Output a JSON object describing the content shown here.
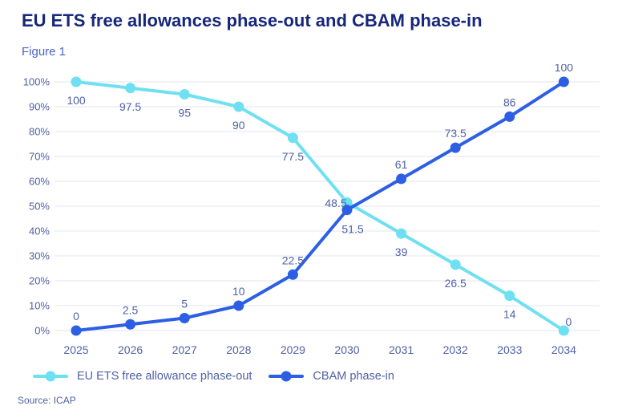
{
  "title": "EU ETS free allowances phase-out and CBAM phase-in",
  "figure_label": "Figure 1",
  "source_note": "Source: ICAP",
  "colors": {
    "title": "#16277c",
    "figure_label": "#4a63c8",
    "axis_text": "#4f61a5",
    "gridline": "#e3e5ef",
    "ets_series": "#6fe0f2",
    "cbam_series": "#2c5fe3",
    "background": "#ffffff"
  },
  "legend": {
    "items": [
      {
        "label": "EU ETS free allowance phase-out",
        "series_key": "ets"
      },
      {
        "label": "CBAM phase-in",
        "series_key": "cbam"
      }
    ]
  },
  "chart_data": {
    "type": "line",
    "title": "EU ETS free allowances phase-out and CBAM phase-in",
    "xlabel": "",
    "ylabel": "",
    "x": [
      2025,
      2026,
      2027,
      2028,
      2029,
      2030,
      2031,
      2032,
      2033,
      2034
    ],
    "yticks": [
      "100%",
      "90%",
      "80%",
      "70%",
      "60%",
      "50%",
      "40%",
      "30%",
      "20%",
      "10%",
      "0%"
    ],
    "ylim": [
      0,
      100
    ],
    "grid": true,
    "legend_position": "bottom",
    "data_labels": true,
    "series": [
      {
        "name": "EU ETS free allowance phase-out",
        "color": "#6fe0f2",
        "label_position": "below",
        "values": [
          100,
          97.5,
          95,
          90,
          77.5,
          51.5,
          39,
          26.5,
          14,
          0
        ]
      },
      {
        "name": "CBAM phase-in",
        "color": "#2c5fe3",
        "label_position": "above",
        "values": [
          0,
          2.5,
          5,
          10,
          22.5,
          48.5,
          61,
          73.5,
          86,
          100
        ]
      }
    ]
  }
}
